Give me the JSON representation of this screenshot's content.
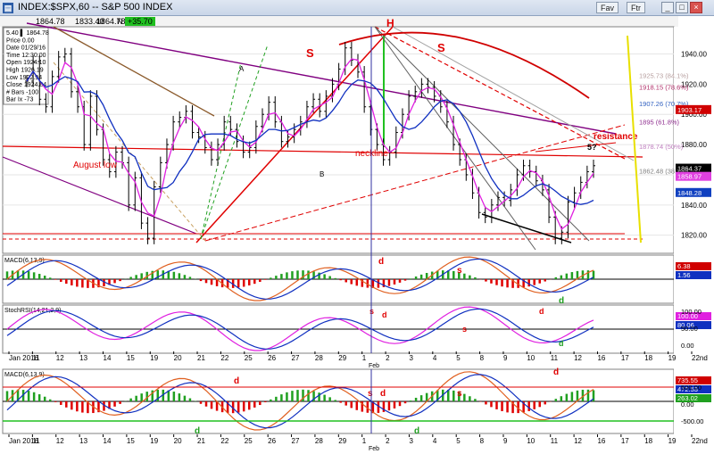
{
  "window": {
    "title": "INDEX:$SPX,60 -- S&P 500 INDEX",
    "app_icon": "chart-app-icon",
    "toolbar": {
      "value1": "1864.78",
      "value2": "1833.40",
      "value3": "1864.78",
      "flag": "N",
      "change": "+35.70",
      "fav_label": "Fav",
      "ftr_label": "Ftr"
    },
    "buttons": [
      "minimize-icon",
      "maximize-icon",
      "close-icon"
    ]
  },
  "info_box": [
    "5.40 ▌ 1864.78",
    "Price  0.00",
    "Date  01/29/16",
    "Time  12:30:00",
    "Open  1924.10",
    "High  1926.19",
    "Low  1922.94",
    "Close  1924.84",
    "# Bars -100",
    "Bar Ix  -73"
  ],
  "chart_data": [
    {
      "type": "candlestick",
      "title": "INDEX:$SPX,60 -- S&P 500 INDEX",
      "ylim": [
        1808,
        1958
      ],
      "y_ticks": [
        1820,
        1840,
        1860,
        1880,
        1900,
        1920,
        1940
      ],
      "x_ticks": [
        "Jan 2016",
        "11",
        "12",
        "13",
        "14",
        "15",
        "19",
        "20",
        "21",
        "22",
        "25",
        "26",
        "27",
        "28",
        "29",
        "1",
        "2",
        "3",
        "4",
        "5",
        "8",
        "9",
        "10",
        "11",
        "12",
        "16",
        "17",
        "18",
        "19",
        "22nd"
      ],
      "x_month_label": "Feb",
      "series": [
        {
          "values": [
            1922,
            1935,
            1910,
            1905,
            1925,
            1938,
            1940,
            1915,
            1905,
            1880,
            1912,
            1890,
            1870,
            1862,
            1875,
            1868,
            1840,
            1858,
            1828,
            1818,
            1852,
            1868,
            1880,
            1895,
            1898,
            1902,
            1888,
            1885,
            1878,
            1870,
            1880,
            1895,
            1890,
            1882,
            1875,
            1878,
            1892,
            1900,
            1908,
            1895,
            1882,
            1885,
            1890,
            1895,
            1905,
            1910,
            1902,
            1912,
            1920,
            1930,
            1944,
            1936,
            1928,
            1905,
            1890,
            1880,
            1870,
            1875,
            1888,
            1900,
            1912,
            1915,
            1920,
            1918,
            1912,
            1905,
            1895,
            1880,
            1870,
            1860,
            1848,
            1835,
            1832,
            1840,
            1845,
            1843,
            1850,
            1860,
            1866,
            1862,
            1856,
            1850,
            1832,
            1818,
            1822,
            1842,
            1848,
            1855,
            1862,
            1866
          ]
        }
      ],
      "price_tags": [
        {
          "value": 1925.73,
          "text": "1925.73 (84.1%)",
          "color": "#b8a0a0"
        },
        {
          "value": 1918.15,
          "text": "1918.15 (78.6%)",
          "color": "#b0306a"
        },
        {
          "value": 1907.26,
          "text": "1907.26 (70.7%)",
          "color": "#3060c0"
        },
        {
          "value": 1903.17,
          "text": "1903.17",
          "color": "#d00000"
        },
        {
          "value": 1895,
          "text": "1895 (61.8%)",
          "color": "#903090"
        },
        {
          "value": 1878.74,
          "text": "1878.74 (50%)",
          "color": "#c080c0"
        },
        {
          "value": 1864.37,
          "text": "1864.37",
          "color": "#000000"
        },
        {
          "value": 1862.48,
          "text": "1862.48 (38.2%)",
          "color": "#808080"
        },
        {
          "value": 1858.97,
          "text": "1858.97",
          "color": "#e040e0"
        },
        {
          "value": 1848.28,
          "text": "1848.28",
          "color": "#1040c0"
        }
      ],
      "annotations": {
        "august_low": "August low",
        "neckline": "neckline",
        "resistance": "resistance",
        "s_left": "S",
        "head": "H",
        "s_right": "S",
        "wave_a": "A",
        "wave_b": "B",
        "wave_5": "5?"
      },
      "colors": {
        "price": "#000000",
        "ma_fast": "#e020e0",
        "ma_slow": "#1030c0",
        "ma_long": "#d00000",
        "trendline": "#e00000",
        "channel": "#800080",
        "fan_green": "#20a020"
      }
    },
    {
      "type": "macd",
      "title": "MACD(6,13,9)",
      "ylim": [
        -1,
        1
      ],
      "tags": [
        {
          "text": "6.38",
          "color": "#d00000"
        },
        {
          "text": "1.56",
          "color": "#1030c0"
        }
      ],
      "annotations": {
        "d1": "d",
        "s1": "s",
        "d2": "d"
      }
    },
    {
      "type": "stochrsi",
      "title": "StochRSI(14,21,2,9)",
      "ylim": [
        0,
        100
      ],
      "y_ticks": [
        "100.00",
        "50.00",
        "0.00"
      ],
      "tags": [
        {
          "text": "100.00",
          "color": "#e020e0"
        },
        {
          "text": "80.06",
          "color": "#1030c0"
        }
      ],
      "annotations": {
        "s1": "s",
        "d1": "d",
        "s2": "s",
        "d2": "d",
        "d3": "d"
      }
    },
    {
      "type": "macd",
      "title": "MACD(6,13,9)",
      "y_ticks": [
        "500.00",
        "0.00",
        "-500.00"
      ],
      "tags": [
        {
          "text": "735.55",
          "color": "#d00000"
        },
        {
          "text": "472.53",
          "color": "#1030c0"
        },
        {
          "text": "263.02",
          "color": "#20a020"
        }
      ],
      "annotations": {
        "d1": "d",
        "d2": "d",
        "s1": "s",
        "d3": "d",
        "d4": "d",
        "s2": "s",
        "d5": "d"
      }
    }
  ]
}
